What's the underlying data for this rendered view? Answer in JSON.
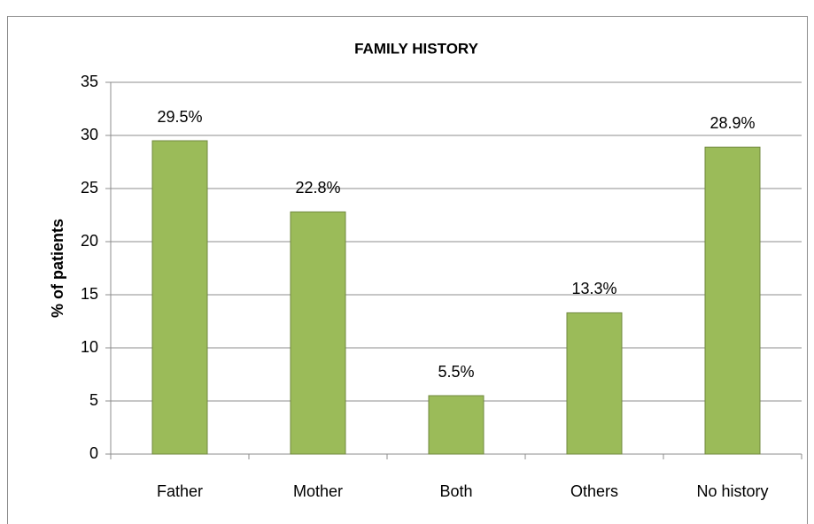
{
  "chart_data": {
    "type": "bar",
    "title": "FAMILY HISTORY",
    "y_label": "% of patients",
    "categories": [
      "Father",
      "Mother",
      "Both",
      "Others",
      "No history"
    ],
    "values": [
      29.5,
      22.8,
      5.5,
      13.3,
      28.9
    ],
    "value_labels": [
      "29.5%",
      "22.8%",
      "5.5%",
      "13.3%",
      "28.9%"
    ],
    "color": "#9bbb59",
    "ylim": [
      0,
      35
    ],
    "yticks": [
      0,
      5,
      10,
      15,
      20,
      25,
      30,
      35
    ],
    "grid": true
  }
}
